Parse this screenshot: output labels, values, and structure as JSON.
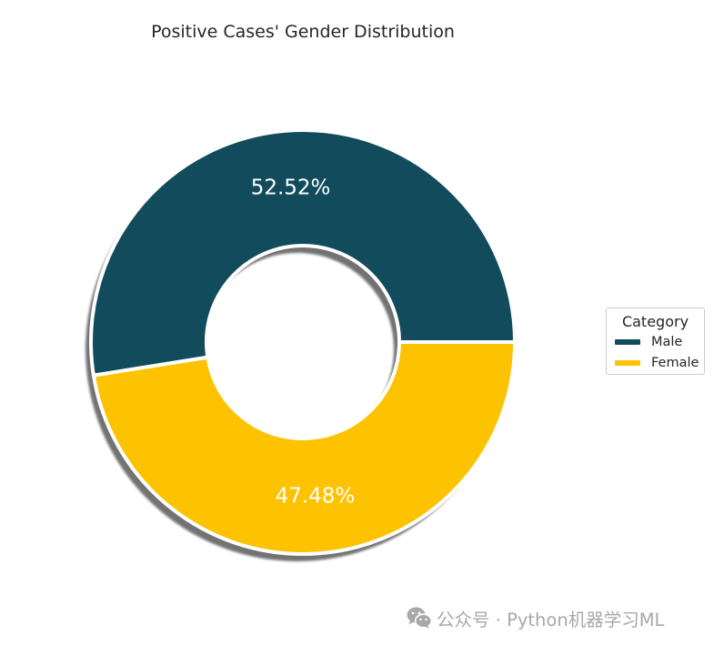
{
  "chart_data": {
    "type": "pie",
    "style": "donut",
    "title": "Positive Cases' Gender Distribution",
    "categories": [
      "Male",
      "Female"
    ],
    "values": [
      52.52,
      47.48
    ],
    "value_labels": [
      "52.52%",
      "47.48%"
    ],
    "colors": [
      "#124c5c",
      "#fdc200"
    ],
    "legend": {
      "title": "Category",
      "placement": "right",
      "entries": [
        "Male",
        "Female"
      ]
    },
    "shadow": true
  },
  "watermark": {
    "text": "公众号 · Python机器学习ML",
    "icon": "wechat-icon"
  }
}
